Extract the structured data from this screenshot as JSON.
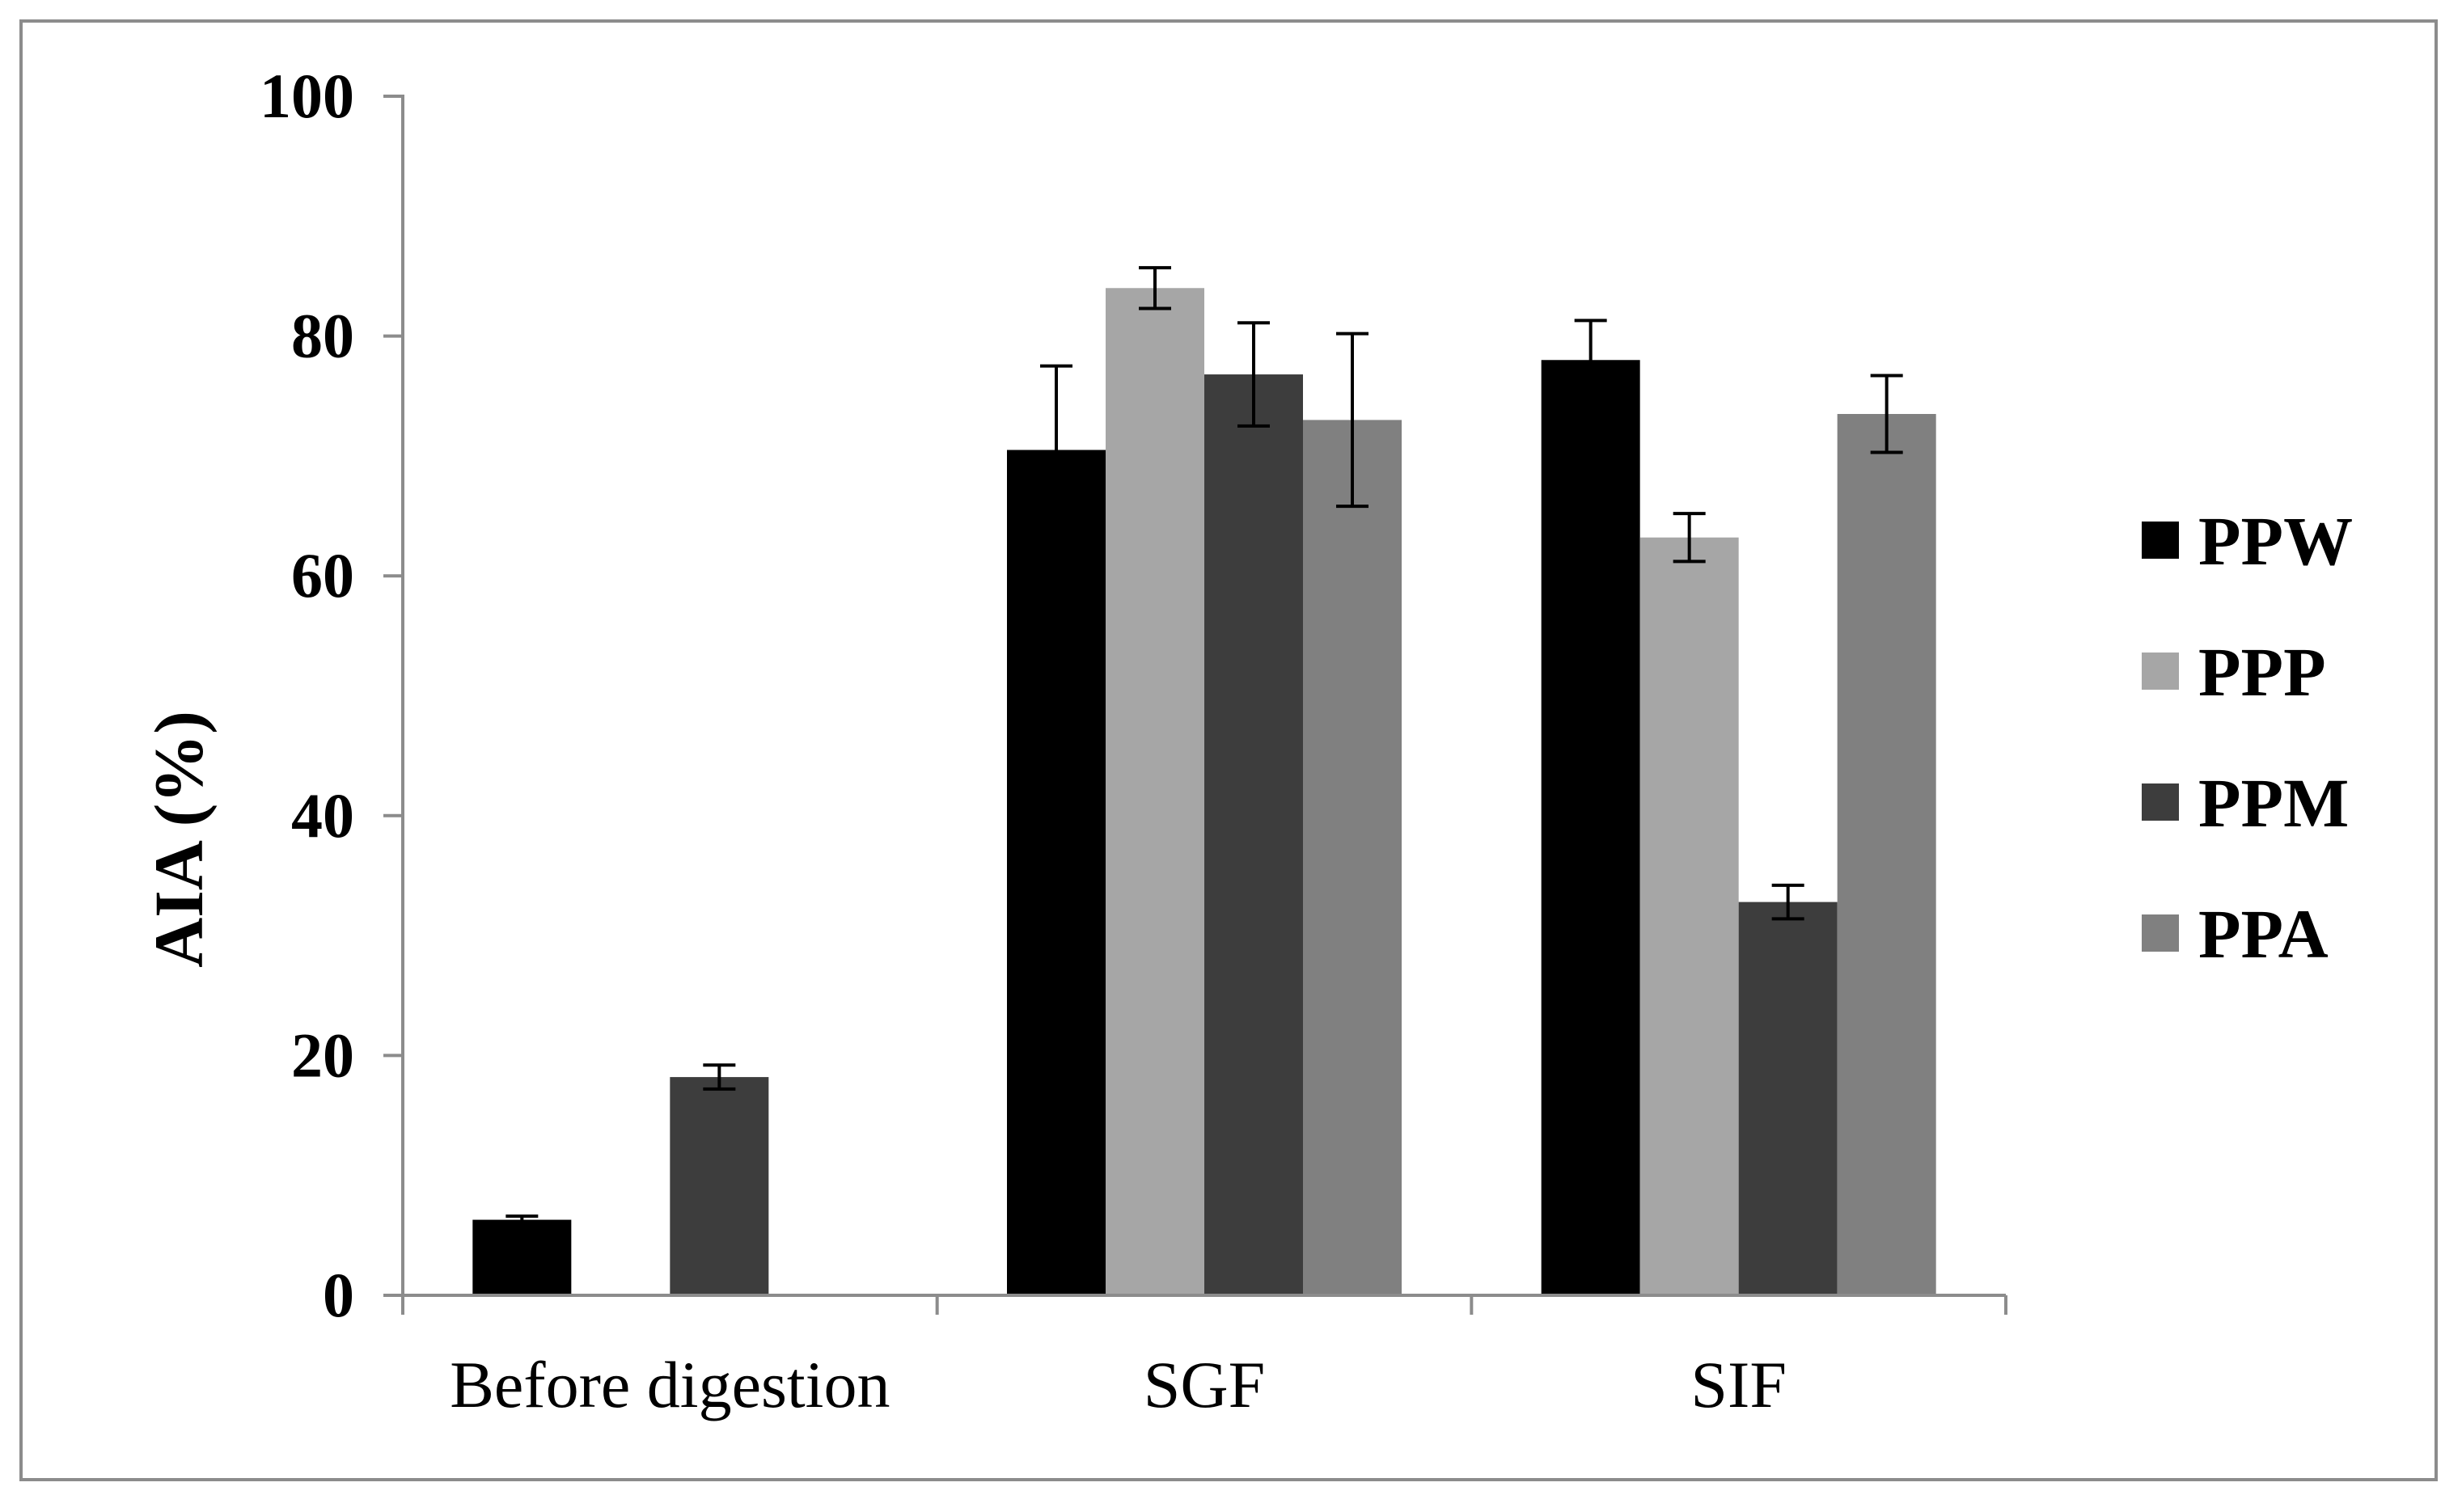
{
  "chart_data": {
    "type": "bar",
    "title": "",
    "xlabel": "",
    "ylabel": "AIA (%)",
    "ylim": [
      0,
      100
    ],
    "yticks": [
      0,
      20,
      40,
      60,
      80,
      100
    ],
    "grid": false,
    "legend_position": "right",
    "categories": [
      "Before digestion",
      "SGF",
      "SIF"
    ],
    "series": [
      {
        "name": "PPW",
        "color": "#000000",
        "values": [
          6.3,
          70.5,
          78.0
        ],
        "errors": [
          0.3,
          7.0,
          3.3
        ]
      },
      {
        "name": "PPP",
        "color": "#a6a6a6",
        "values": [
          null,
          84.0,
          63.2
        ],
        "errors": [
          null,
          1.7,
          2.0
        ]
      },
      {
        "name": "PPM",
        "color": "#3d3d3d",
        "values": [
          18.2,
          76.8,
          32.8
        ],
        "errors": [
          1.0,
          4.3,
          1.4
        ]
      },
      {
        "name": "PPA",
        "color": "#808080",
        "values": [
          null,
          73.0,
          73.5
        ],
        "errors": [
          null,
          7.2,
          3.2
        ]
      }
    ]
  }
}
